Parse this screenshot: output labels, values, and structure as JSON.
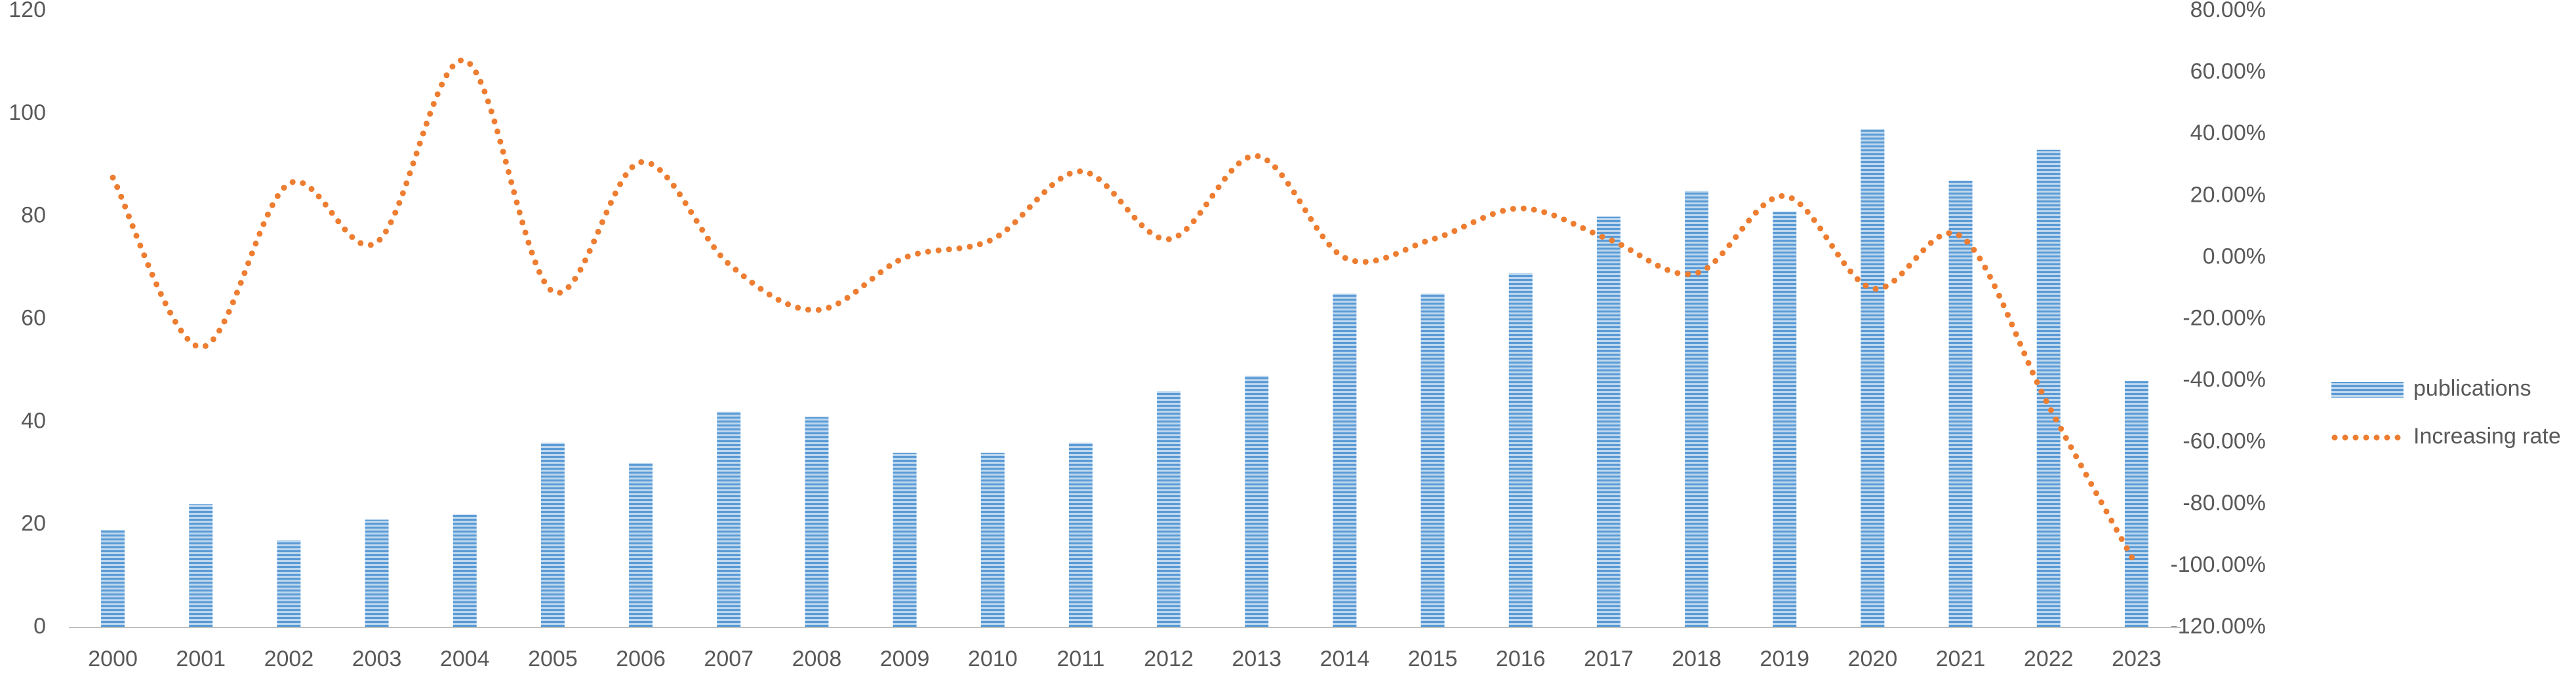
{
  "chart_data": {
    "type": "bar-line",
    "categories": [
      "2000",
      "2001",
      "2002",
      "2003",
      "2004",
      "2005",
      "2006",
      "2007",
      "2008",
      "2009",
      "2010",
      "2011",
      "2012",
      "2013",
      "2014",
      "2015",
      "2016",
      "2017",
      "2018",
      "2019",
      "2020",
      "2021",
      "2022",
      "2023"
    ],
    "series": [
      {
        "name": "publications",
        "color": "#5b9bd5",
        "type": "bar",
        "values": [
          19,
          24,
          17,
          21,
          22,
          36,
          32,
          42,
          41,
          34,
          34,
          36,
          46,
          49,
          65,
          65,
          69,
          80,
          85,
          81,
          97,
          87,
          93,
          48
        ]
      },
      {
        "name": "Increasing rate",
        "color": "#ed7d31",
        "type": "line",
        "axis": "y2",
        "values": [
          26,
          -29,
          24,
          5,
          64,
          -11,
          31,
          -2,
          -17,
          0,
          6,
          28,
          6,
          33,
          0,
          6,
          16,
          6,
          -5,
          20,
          -10,
          7,
          -48,
          -100
        ]
      }
    ],
    "ylim": [
      0,
      120
    ],
    "yticks": [
      0,
      20,
      40,
      60,
      80,
      100,
      120
    ],
    "y2lim": [
      -120,
      80
    ],
    "y2ticks": [
      {
        "value": -120,
        "label": "-120.00%"
      },
      {
        "value": -100,
        "label": "-100.00%"
      },
      {
        "value": -80,
        "label": "-80.00%"
      },
      {
        "value": -60,
        "label": "-60.00%"
      },
      {
        "value": -40,
        "label": "-40.00%"
      },
      {
        "value": -20,
        "label": "-20.00%"
      },
      {
        "value": 0,
        "label": "0.00%"
      },
      {
        "value": 20,
        "label": "20.00%"
      },
      {
        "value": 40,
        "label": "40.00%"
      },
      {
        "value": 60,
        "label": "60.00%"
      },
      {
        "value": 80,
        "label": "80.00%"
      }
    ],
    "grid": false,
    "legend": "right"
  }
}
